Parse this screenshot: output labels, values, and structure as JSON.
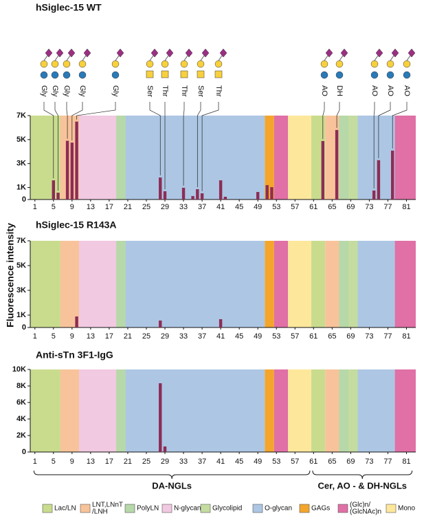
{
  "chart_data": [
    {
      "type": "bar",
      "title": "hSiglec-15 WT",
      "color": "#8c2d55",
      "x": [
        5,
        6,
        8,
        9,
        10,
        28,
        29,
        33,
        35,
        36,
        37,
        41,
        42,
        49,
        51,
        52,
        63,
        66,
        74,
        75,
        78
      ],
      "values": [
        1600,
        570,
        4900,
        4750,
        6500,
        1840,
        690,
        980,
        290,
        860,
        520,
        1600,
        230,
        630,
        1200,
        1030,
        4880,
        5800,
        750,
        3280,
        4080
      ],
      "xlim": [
        0,
        83
      ],
      "xticks": [
        1,
        5,
        9,
        13,
        17,
        21,
        25,
        29,
        33,
        37,
        41,
        45,
        49,
        53,
        57,
        61,
        65,
        69,
        73,
        77,
        81
      ],
      "ylim": [
        0,
        7000
      ],
      "yticks": [
        0,
        {
          "value": 1000,
          "label": "1K"
        },
        {
          "value": 3000,
          "label": "3K"
        },
        {
          "value": 5000,
          "label": "5K"
        },
        {
          "value": 7000,
          "label": "7K"
        }
      ],
      "annotations": [
        {
          "label": "Gly",
          "x": 5
        },
        {
          "label": "Gly",
          "x": 6
        },
        {
          "label": "Gly",
          "x": 8
        },
        {
          "label": "Gly",
          "x": 9
        },
        {
          "label": "Gly",
          "x": 10
        },
        {
          "label": "Ser",
          "x": 28
        },
        {
          "label": "Thr",
          "x": 29
        },
        {
          "label": "Thr",
          "x": 33
        },
        {
          "label": "Ser",
          "x": 36
        },
        {
          "label": "Thr",
          "x": 37
        },
        {
          "label": "AO",
          "x": 63
        },
        {
          "label": "DH",
          "x": 66
        },
        {
          "label": "AO",
          "x": 74
        },
        {
          "label": "AO",
          "x": 75
        },
        {
          "label": "AO",
          "x": 78
        }
      ]
    },
    {
      "type": "bar",
      "title": "hSiglec-15 R143A",
      "color": "#8c2d55",
      "x": [
        10,
        28,
        41
      ],
      "values": [
        890,
        560,
        670
      ],
      "xlim": [
        0,
        83
      ],
      "xticks": [
        1,
        5,
        9,
        13,
        17,
        21,
        25,
        29,
        33,
        37,
        41,
        45,
        49,
        53,
        57,
        61,
        65,
        69,
        73,
        77,
        81
      ],
      "ylim": [
        0,
        7000
      ],
      "yticks": [
        0,
        {
          "value": 1000,
          "label": "1K"
        },
        {
          "value": 3000,
          "label": "3K"
        },
        {
          "value": 5000,
          "label": "5K"
        },
        {
          "value": 7000,
          "label": "7K"
        }
      ]
    },
    {
      "type": "bar",
      "title": "Anti-sTn 3F1-IgG",
      "color": "#8c2d55",
      "x": [
        28,
        29
      ],
      "values": [
        8330,
        670
      ],
      "xlim": [
        0,
        83
      ],
      "xticks": [
        1,
        5,
        9,
        13,
        17,
        21,
        25,
        29,
        33,
        37,
        41,
        45,
        49,
        53,
        57,
        61,
        65,
        69,
        73,
        77,
        81
      ],
      "ylim": [
        0,
        10000
      ],
      "yticks": [
        0,
        {
          "value": 2000,
          "label": "2K"
        },
        {
          "value": 4000,
          "label": "4K"
        },
        {
          "value": 6000,
          "label": "6K"
        },
        {
          "value": 8000,
          "label": "8K"
        },
        {
          "value": 10000,
          "label": "10K"
        }
      ]
    }
  ],
  "y_label": "Fluorescence intensity",
  "legend": [
    {
      "label": [
        "Lac/LN"
      ],
      "color": "#c9dc8e",
      "ranges": [
        [
          1,
          6
        ],
        [
          61,
          63
        ]
      ]
    },
    {
      "label": [
        "LNT,LNnT",
        "/LNH"
      ],
      "color": "#f8c39a",
      "ranges": [
        [
          7,
          10
        ],
        [
          64,
          66
        ]
      ]
    },
    {
      "label": [
        "PolyLN"
      ],
      "color": "#b7d8a8",
      "ranges": [
        [
          19,
          20
        ],
        [
          67,
          68
        ]
      ]
    },
    {
      "label": [
        "N-glycan"
      ],
      "color": "#f1c9e0",
      "ranges": [
        [
          11,
          18
        ]
      ]
    },
    {
      "label": [
        "Glycolipid"
      ],
      "color": "#c4dca0",
      "ranges": [
        [
          69,
          70
        ]
      ]
    },
    {
      "label": [
        "O-glycan"
      ],
      "color": "#adc6e4",
      "ranges": [
        [
          21,
          50
        ],
        [
          71,
          78
        ]
      ]
    },
    {
      "label": [
        "GAGs"
      ],
      "color": "#f4a52c",
      "ranges": [
        [
          51,
          52
        ]
      ]
    },
    {
      "label": [
        "(Glc)n/",
        "(GlcNAc)n"
      ],
      "color": "#e070a6",
      "ranges": [
        [
          53,
          55
        ],
        [
          79,
          82
        ]
      ]
    },
    {
      "label": [
        "Mono"
      ],
      "color": "#fde79b",
      "ranges": [
        [
          56,
          60
        ]
      ]
    }
  ],
  "groups": [
    {
      "label": "DA-NGLs",
      "start": 1,
      "end": 60
    },
    {
      "label": "Cer, AO - & DH-NGLs",
      "start": 61,
      "end": 82
    }
  ]
}
